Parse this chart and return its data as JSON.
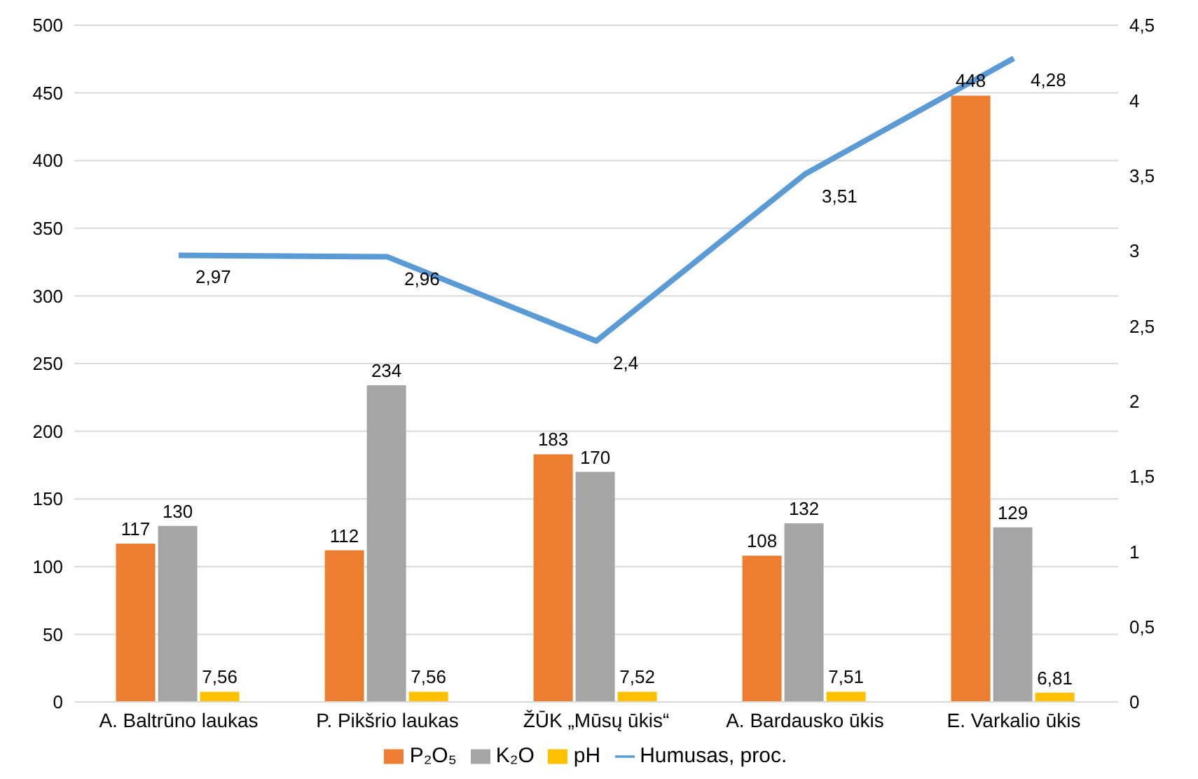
{
  "chart_data": {
    "type": "bar",
    "categories": [
      "A. Baltrūno laukas",
      "P. Pikšrio laukas",
      "ŽŪK „Mūsų ūkis“",
      "A. Bardausko ūkis",
      "E. Varkalio ūkis"
    ],
    "series": [
      {
        "name": "P₂O₅",
        "color": "#ed7d31",
        "values": [
          117,
          112,
          183,
          108,
          448
        ],
        "value_labels": [
          "117",
          "112",
          "183",
          "108",
          "448"
        ]
      },
      {
        "name": "K₂O",
        "color": "#a5a5a5",
        "values": [
          130,
          234,
          170,
          132,
          129
        ],
        "value_labels": [
          "130",
          "234",
          "170",
          "132",
          "129"
        ]
      },
      {
        "name": "pH",
        "color": "#ffc000",
        "values": [
          7.56,
          7.56,
          7.52,
          7.51,
          6.81
        ],
        "value_labels": [
          "7,56",
          "7,56",
          "7,52",
          "7,51",
          "6,81"
        ]
      },
      {
        "name": "Humusas, proc.",
        "type": "line",
        "axis": "y2",
        "color": "#5b9bd5",
        "values": [
          2.97,
          2.96,
          2.4,
          3.51,
          4.28
        ],
        "value_labels": [
          "2,97",
          "2,96",
          "2,4",
          "3,51",
          "4,28"
        ]
      }
    ],
    "ylim": [
      0,
      500
    ],
    "yticks": [
      0,
      50,
      100,
      150,
      200,
      250,
      300,
      350,
      400,
      450,
      500
    ],
    "y2lim": [
      0,
      4.5
    ],
    "y2ticks": [
      0,
      {
        "value": 0.5,
        "label": "0,5"
      },
      1,
      {
        "value": 1.5,
        "label": "1,5"
      },
      2,
      {
        "value": 2.5,
        "label": "2,5"
      },
      3,
      {
        "value": 3.5,
        "label": "3,5"
      },
      4,
      {
        "value": 4.5,
        "label": "4,5"
      }
    ],
    "grid": "y",
    "legend": "bottom",
    "marker": "none",
    "line_style": "solid"
  }
}
